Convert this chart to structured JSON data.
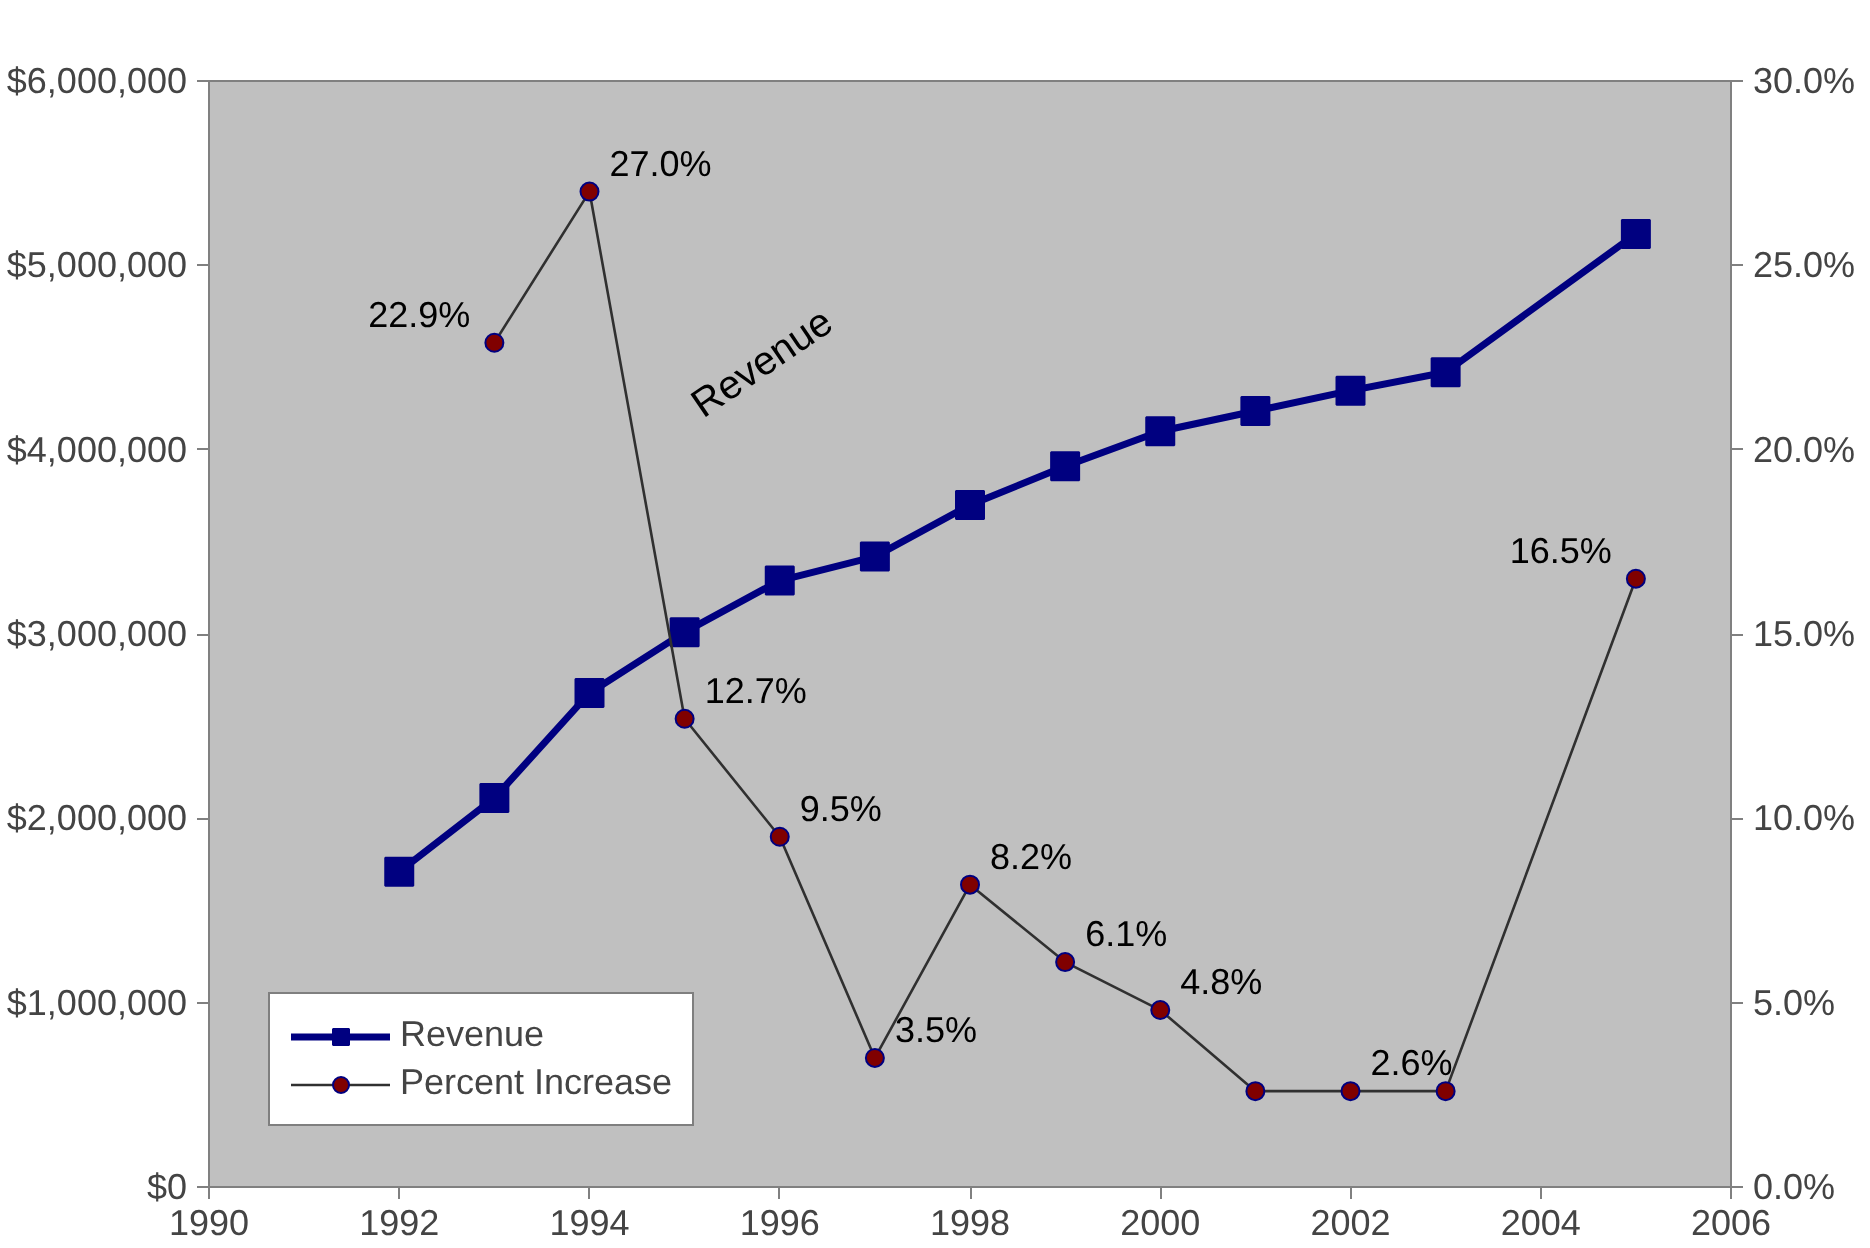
{
  "chart_data": {
    "type": "line",
    "x": [
      1992,
      1993,
      1994,
      1995,
      1996,
      1997,
      1998,
      1999,
      2000,
      2001,
      2002,
      2003,
      2005
    ],
    "series": [
      {
        "name": "Revenue",
        "color": "#000080",
        "marker": "square",
        "values": [
          1710000,
          2110000,
          2680000,
          3010000,
          3290000,
          3420000,
          3700000,
          3910000,
          4100000,
          4210000,
          4320000,
          4420000,
          5170000
        ]
      },
      {
        "name": "Percent Increase",
        "color": "#800000",
        "marker": "circle",
        "axis": "y2",
        "x": [
          1993,
          1994,
          1995,
          1996,
          1997,
          1998,
          1999,
          2000,
          2001,
          2002,
          2003,
          2005
        ],
        "values": [
          22.9,
          27.0,
          12.7,
          9.5,
          3.5,
          8.2,
          6.1,
          4.8,
          2.6,
          2.6,
          2.6,
          16.5
        ],
        "value_labels": [
          "22.9%",
          "27.0%",
          "12.7%",
          "9.5%",
          "3.5%",
          "8.2%",
          "6.1%",
          "4.8%",
          null,
          "2.6%",
          null,
          "16.5%"
        ]
      }
    ],
    "annotations": [
      "Revenue"
    ],
    "xlim": [
      1990,
      2006
    ],
    "xticks": [
      1990,
      1992,
      1994,
      1996,
      1998,
      2000,
      2002,
      2004,
      2006
    ],
    "ylim": [
      0,
      6000000
    ],
    "yticks": [
      {
        "value": 0,
        "label": "$0"
      },
      {
        "value": 1000000,
        "label": "$1,000,000"
      },
      {
        "value": 2000000,
        "label": "$2,000,000"
      },
      {
        "value": 3000000,
        "label": "$3,000,000"
      },
      {
        "value": 4000000,
        "label": "$4,000,000"
      },
      {
        "value": 5000000,
        "label": "$5,000,000"
      },
      {
        "value": 6000000,
        "label": "$6,000,000"
      }
    ],
    "y2lim": [
      0,
      30
    ],
    "y2ticks": [
      {
        "value": 0,
        "label": "0.0%"
      },
      {
        "value": 5,
        "label": "5.0%"
      },
      {
        "value": 10,
        "label": "10.0%"
      },
      {
        "value": 15,
        "label": "15.0%"
      },
      {
        "value": 20,
        "label": "20.0%"
      },
      {
        "value": 25,
        "label": "25.0%"
      },
      {
        "value": 30,
        "label": "30.0%"
      }
    ],
    "legend": "bottom left",
    "grid": false
  }
}
